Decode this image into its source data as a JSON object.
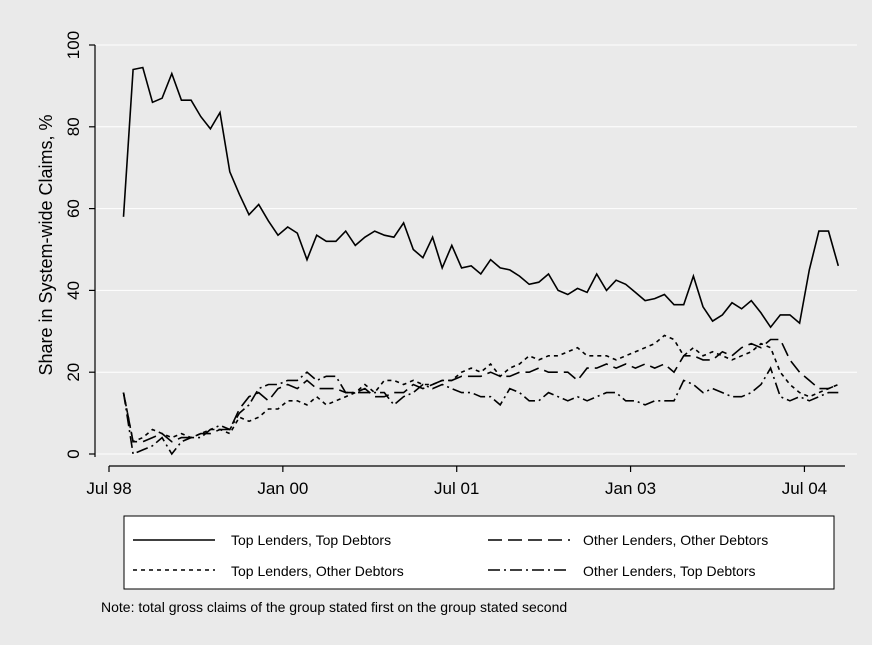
{
  "chart_data": {
    "type": "line",
    "title": "",
    "xlabel": "",
    "ylabel": "Share in System-wide Claims, %",
    "ylim": [
      0,
      100
    ],
    "yticks": [
      0,
      20,
      40,
      60,
      80,
      100
    ],
    "xticks": [
      {
        "label": "Jul 98",
        "value": 1998.5
      },
      {
        "label": "Jan 00",
        "value": 2000.0
      },
      {
        "label": "Jul 01",
        "value": 2001.5
      },
      {
        "label": "Jan 03",
        "value": 2003.0
      },
      {
        "label": "Jul 04",
        "value": 2004.5
      }
    ],
    "xlim": [
      1998.5,
      2004.85
    ],
    "grid": true,
    "legend_placement": "bottom",
    "note": "Note: total gross claims of the group stated first on the group stated second",
    "x": [
      1998.625,
      1998.708,
      1998.792,
      1998.875,
      1998.958,
      1999.042,
      1999.125,
      1999.208,
      1999.292,
      1999.375,
      1999.458,
      1999.542,
      1999.625,
      1999.708,
      1999.792,
      1999.875,
      1999.958,
      2000.042,
      2000.125,
      2000.208,
      2000.292,
      2000.375,
      2000.458,
      2000.542,
      2000.625,
      2000.708,
      2000.792,
      2000.875,
      2000.958,
      2001.042,
      2001.125,
      2001.208,
      2001.292,
      2001.375,
      2001.458,
      2001.542,
      2001.625,
      2001.708,
      2001.792,
      2001.875,
      2001.958,
      2002.042,
      2002.125,
      2002.208,
      2002.292,
      2002.375,
      2002.458,
      2002.542,
      2002.625,
      2002.708,
      2002.792,
      2002.875,
      2002.958,
      2003.042,
      2003.125,
      2003.208,
      2003.292,
      2003.375,
      2003.458,
      2003.542,
      2003.625,
      2003.708,
      2003.792,
      2003.875,
      2003.958,
      2004.042,
      2004.125,
      2004.208,
      2004.292,
      2004.375,
      2004.458,
      2004.542,
      2004.625,
      2004.708,
      2004.792
    ],
    "series": [
      {
        "name": "Top Lenders, Top Debtors",
        "dash": "",
        "values": [
          58,
          94,
          94.5,
          86,
          87,
          93,
          86.5,
          86.5,
          82.5,
          79.5,
          83.5,
          69,
          63.5,
          58.5,
          61,
          57,
          53.5,
          55.5,
          54,
          47.5,
          53.5,
          52,
          52,
          54.5,
          51,
          53,
          54.5,
          53.5,
          53,
          56.5,
          50,
          48,
          53,
          45.5,
          51,
          45.5,
          46,
          44,
          47.5,
          45.5,
          45,
          43.5,
          41.5,
          42,
          44,
          40,
          39,
          40.5,
          39.5,
          44,
          40,
          42.5,
          41.5,
          39.5,
          37.5,
          38,
          39,
          36.5,
          36.5,
          43.5,
          36,
          32.5,
          34,
          37,
          35.5,
          37.5,
          34.5,
          31,
          34,
          34,
          32,
          45,
          54.5,
          54.5,
          46
        ]
      },
      {
        "name": "Other Lenders, Other Debtors",
        "dash": "14,6",
        "values": [
          15,
          3,
          3,
          4,
          5,
          3,
          4,
          4,
          5,
          5,
          6,
          6,
          11,
          14,
          15,
          13,
          16,
          17,
          16,
          18,
          16,
          16,
          16,
          15,
          15,
          16,
          14,
          14,
          15,
          15,
          17,
          16,
          17,
          18,
          18,
          19,
          19,
          19,
          20,
          19,
          19,
          20,
          20,
          21,
          20,
          20,
          20,
          18,
          21,
          21,
          22,
          21,
          22,
          21,
          22,
          21,
          22,
          20,
          24,
          24,
          23,
          23,
          25,
          24,
          26,
          27,
          26,
          28,
          28,
          23,
          20,
          18,
          16,
          16,
          17
        ]
      },
      {
        "name": "Top Lenders, Other Debtors",
        "dash": "4,4",
        "values": [
          15,
          3,
          4,
          6,
          5,
          4,
          5,
          4,
          5,
          6,
          6,
          5,
          9,
          8,
          9,
          11,
          11,
          13,
          13,
          12,
          14,
          12,
          13,
          14,
          15,
          17,
          15,
          18,
          18,
          17,
          18,
          17,
          17,
          18,
          18,
          20,
          21,
          20,
          22,
          19,
          21,
          22,
          24,
          23,
          24,
          24,
          25,
          26,
          24,
          24,
          24,
          23,
          24,
          25,
          26,
          27,
          29,
          28,
          24,
          26,
          24,
          25,
          24,
          23,
          24,
          25,
          27,
          26,
          20,
          17,
          15,
          14,
          15,
          16,
          17
        ]
      },
      {
        "name": "Other Lenders, Top Debtors",
        "dash": "12,4,2,4",
        "values": [
          15,
          0,
          1,
          2,
          4,
          0,
          3,
          4,
          4,
          6,
          7,
          6,
          10,
          12,
          16,
          17,
          17,
          18,
          18,
          20,
          18,
          19,
          19,
          15,
          15,
          15,
          15,
          15,
          12,
          14,
          15,
          17,
          16,
          17,
          16,
          15,
          15,
          14,
          14,
          12,
          16,
          15,
          13,
          13,
          15,
          14,
          13,
          14,
          13,
          14,
          15,
          15,
          13,
          13,
          12,
          13,
          13,
          13,
          18,
          17,
          15,
          16,
          15,
          14,
          14,
          15,
          17,
          21,
          14,
          13,
          14,
          13,
          14,
          15,
          15
        ]
      }
    ]
  }
}
